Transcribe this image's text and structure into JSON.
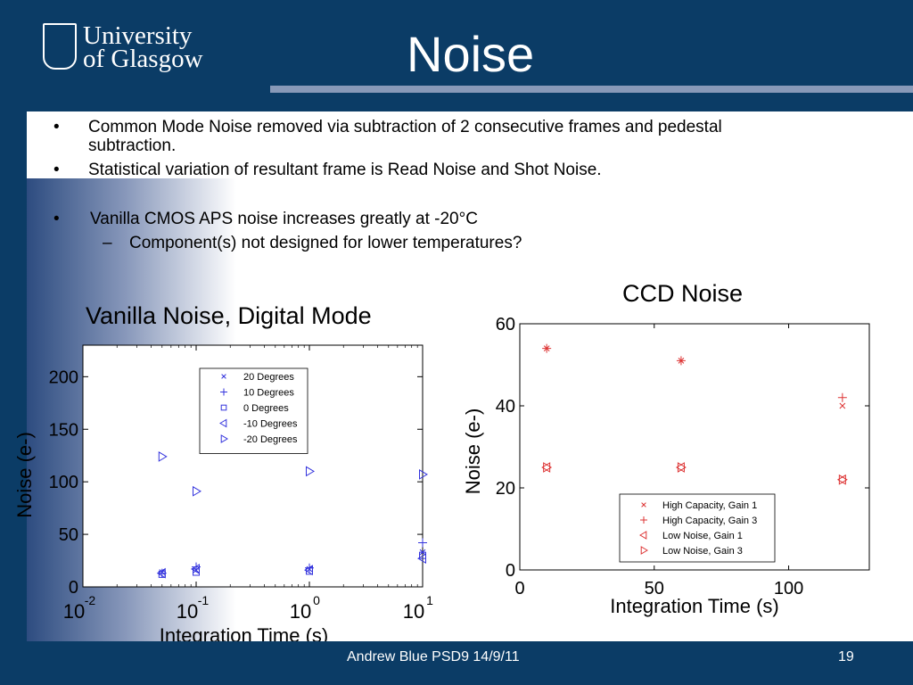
{
  "slide": {
    "title": "Noise",
    "logo_line1": "University",
    "logo_line2": "of Glasgow",
    "bullets": [
      "Common Mode Noise removed via subtraction of 2 consecutive frames and pedestal",
      "subtraction.",
      "Statistical variation of resultant frame is Read Noise and Shot Noise.",
      "Vanilla CMOS APS noise increases greatly at -20°C",
      "Component(s) not designed for lower temperatures?"
    ],
    "bullet_marker": "•",
    "sub_marker": "–",
    "footer_text": "Andrew Blue PSD9  14/9/11",
    "page_number": "19"
  },
  "chart_data": [
    {
      "type": "scatter",
      "title": "Vanilla Noise, Digital Mode",
      "xlabel": "Integration Time (s)",
      "ylabel": "Noise (e-)",
      "xscale": "log",
      "xlim": [
        0.01,
        10
      ],
      "ylim": [
        0,
        230
      ],
      "x_tick_bases": [
        "10",
        "10",
        "10",
        "10"
      ],
      "x_tick_exponents": [
        "-2",
        "-1",
        "0",
        "1"
      ],
      "y_ticks": [
        "0",
        "50",
        "100",
        "150",
        "200"
      ],
      "legend_placement": "top-center",
      "series": [
        {
          "name": "20 Degrees",
          "marker": "x",
          "x": [
            0.05,
            0.1,
            1.0,
            10.0
          ],
          "y": [
            14,
            16,
            17,
            33
          ]
        },
        {
          "name": "10 Degrees",
          "marker": "+",
          "x": [
            0.05,
            0.1,
            1.0,
            10.0
          ],
          "y": [
            13,
            19,
            18,
            42
          ]
        },
        {
          "name": "0 Degrees",
          "marker": "square",
          "x": [
            0.05,
            0.1,
            1.0,
            10.0
          ],
          "y": [
            12,
            14,
            15,
            30
          ]
        },
        {
          "name": "-10 Degrees",
          "marker": "triangle-left",
          "x": [
            0.05,
            0.1,
            1.0,
            10.0
          ],
          "y": [
            13,
            17,
            16,
            27
          ]
        },
        {
          "name": "-20 Degrees",
          "marker": "triangle-right",
          "x": [
            0.05,
            0.1,
            1.0,
            10.0
          ],
          "y": [
            124,
            91,
            110,
            107
          ]
        }
      ]
    },
    {
      "type": "scatter",
      "title": "CCD Noise",
      "xlabel": "Integration Time (s)",
      "ylabel": "Noise (e-)",
      "xlim": [
        0,
        130
      ],
      "ylim": [
        0,
        60
      ],
      "x_ticks": [
        "0",
        "50",
        "100"
      ],
      "y_ticks": [
        "0",
        "20",
        "40",
        "60"
      ],
      "legend_placement": "bottom-center",
      "series": [
        {
          "name": "High Capacity, Gain 1",
          "marker": "x",
          "x": [
            10,
            60,
            120
          ],
          "y": [
            54,
            51,
            40
          ]
        },
        {
          "name": "High Capacity, Gain 3",
          "marker": "+",
          "x": [
            10,
            60,
            120
          ],
          "y": [
            54,
            51,
            42
          ]
        },
        {
          "name": "Low Noise, Gain 1",
          "marker": "triangle-left",
          "x": [
            10,
            60,
            120
          ],
          "y": [
            25,
            25,
            22
          ]
        },
        {
          "name": "Low Noise, Gain 3",
          "marker": "triangle-right",
          "x": [
            10,
            60,
            120
          ],
          "y": [
            25,
            25,
            22
          ]
        }
      ]
    }
  ],
  "colors": {
    "background": "#0b3c66",
    "rule": "#8899b8",
    "vanilla_markers": "#3333dd",
    "ccd_markers": "#dd3333"
  }
}
